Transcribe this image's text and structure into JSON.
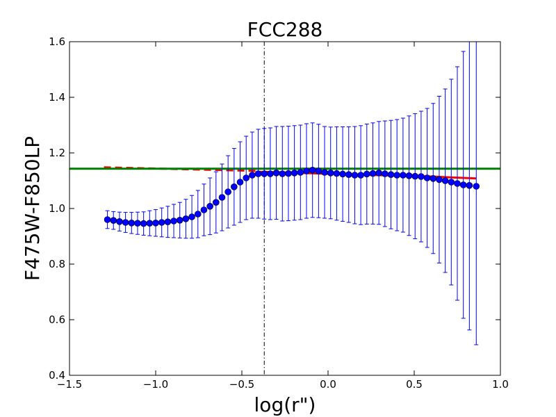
{
  "chart_data": {
    "type": "scatter",
    "title": "FCC288",
    "xlabel": "log(r\")",
    "ylabel": "F475W-F850LP",
    "xlim": [
      -1.5,
      1.0
    ],
    "ylim": [
      0.4,
      1.6
    ],
    "xticks": [
      -1.5,
      -1.0,
      -0.5,
      0.0,
      0.5,
      1.0
    ],
    "yticks": [
      0.4,
      0.6,
      0.8,
      1.0,
      1.2,
      1.4,
      1.6
    ],
    "xtick_labels": [
      "−1.5",
      "−1.0",
      "−0.5",
      "0.0",
      "0.5",
      "1.0"
    ],
    "ytick_labels": [
      "0.4",
      "0.6",
      "0.8",
      "1.0",
      "1.2",
      "1.4",
      "1.6"
    ],
    "grid": false,
    "series": [
      {
        "kind": "errorbar-points",
        "color": "#0000ff",
        "x": [
          -1.28,
          -1.245,
          -1.21,
          -1.175,
          -1.14,
          -1.105,
          -1.07,
          -1.035,
          -1.0,
          -0.965,
          -0.93,
          -0.895,
          -0.86,
          -0.825,
          -0.79,
          -0.755,
          -0.72,
          -0.685,
          -0.65,
          -0.615,
          -0.58,
          -0.545,
          -0.51,
          -0.475,
          -0.44,
          -0.405,
          -0.37,
          -0.335,
          -0.3,
          -0.265,
          -0.23,
          -0.195,
          -0.16,
          -0.125,
          -0.09,
          -0.055,
          -0.02,
          0.015,
          0.05,
          0.085,
          0.12,
          0.155,
          0.19,
          0.225,
          0.26,
          0.295,
          0.33,
          0.365,
          0.4,
          0.435,
          0.47,
          0.505,
          0.54,
          0.575,
          0.61,
          0.645,
          0.68,
          0.715,
          0.75,
          0.785,
          0.82,
          0.86
        ],
        "y": [
          0.96,
          0.957,
          0.953,
          0.95,
          0.948,
          0.947,
          0.946,
          0.947,
          0.948,
          0.95,
          0.952,
          0.955,
          0.958,
          0.963,
          0.97,
          0.98,
          0.995,
          1.008,
          1.022,
          1.04,
          1.06,
          1.078,
          1.095,
          1.11,
          1.12,
          1.125,
          1.125,
          1.125,
          1.128,
          1.125,
          1.126,
          1.128,
          1.13,
          1.135,
          1.138,
          1.135,
          1.13,
          1.128,
          1.126,
          1.124,
          1.122,
          1.12,
          1.12,
          1.124,
          1.126,
          1.128,
          1.125,
          1.122,
          1.12,
          1.12,
          1.118,
          1.116,
          1.115,
          1.11,
          1.108,
          1.104,
          1.1,
          1.095,
          1.09,
          1.085,
          1.083,
          1.08
        ],
        "yerr": [
          0.032,
          0.032,
          0.034,
          0.036,
          0.038,
          0.04,
          0.042,
          0.045,
          0.048,
          0.052,
          0.056,
          0.06,
          0.064,
          0.07,
          0.077,
          0.085,
          0.093,
          0.102,
          0.11,
          0.12,
          0.13,
          0.138,
          0.145,
          0.15,
          0.155,
          0.16,
          0.163,
          0.165,
          0.167,
          0.17,
          0.17,
          0.17,
          0.17,
          0.17,
          0.17,
          0.168,
          0.165,
          0.165,
          0.168,
          0.17,
          0.172,
          0.175,
          0.178,
          0.18,
          0.182,
          0.185,
          0.19,
          0.195,
          0.2,
          0.205,
          0.215,
          0.225,
          0.235,
          0.25,
          0.27,
          0.3,
          0.33,
          0.37,
          0.42,
          0.48,
          0.52,
          0.57
        ]
      },
      {
        "kind": "dashed-line",
        "color": "#ff0000",
        "x": [
          -1.3,
          -0.4
        ],
        "y": [
          1.148,
          1.135
        ]
      },
      {
        "kind": "line",
        "color": "#ff0000",
        "x": [
          -0.4,
          0.0,
          0.3,
          0.6,
          0.86
        ],
        "y": [
          1.132,
          1.125,
          1.12,
          1.115,
          1.108
        ]
      },
      {
        "kind": "hline",
        "color": "#008000",
        "y": 1.143
      },
      {
        "kind": "vline",
        "color": "#000000",
        "style": "dash-dot",
        "x": -0.37
      }
    ]
  }
}
